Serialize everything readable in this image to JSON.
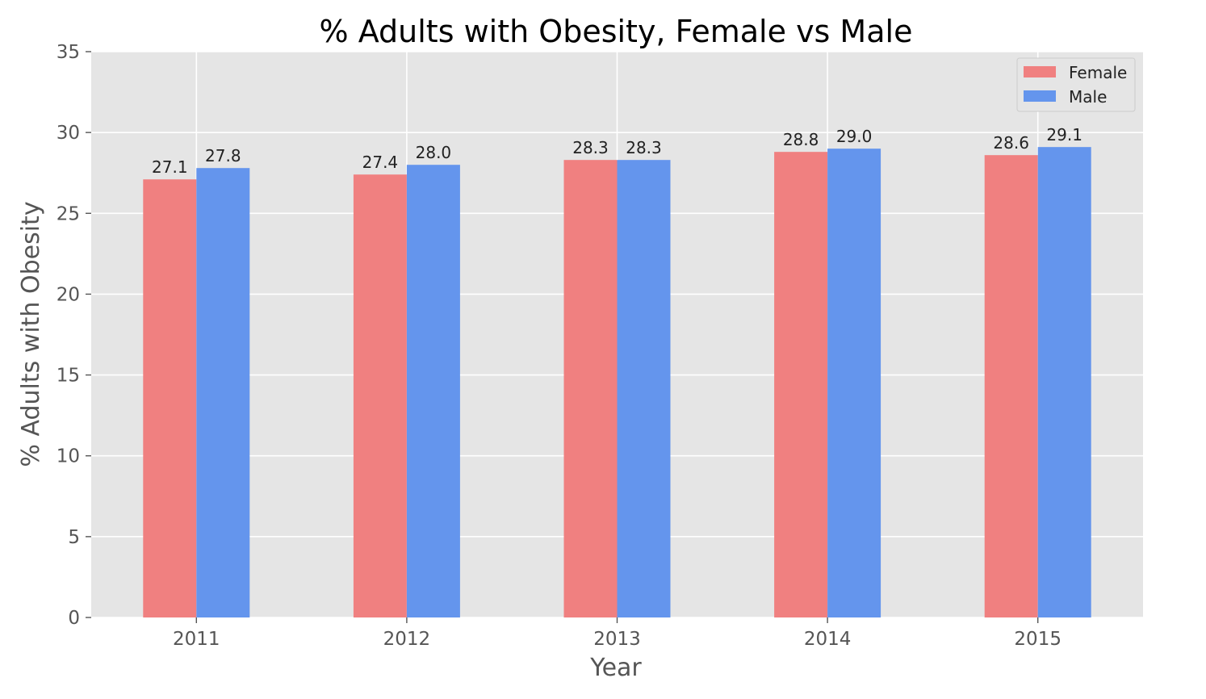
{
  "chart_data": {
    "type": "bar",
    "title": "% Adults with Obesity, Female vs Male",
    "xlabel": "Year",
    "ylabel": "% Adults with Obesity",
    "categories": [
      "2011",
      "2012",
      "2013",
      "2014",
      "2015"
    ],
    "series": [
      {
        "name": "Female",
        "color": "#f08080",
        "values": [
          27.1,
          27.4,
          28.3,
          28.8,
          28.6
        ]
      },
      {
        "name": "Male",
        "color": "#6495ed",
        "values": [
          27.8,
          28.0,
          28.3,
          29.0,
          29.1
        ]
      }
    ],
    "data_labels": [
      [
        "27.1",
        "27.4",
        "28.3",
        "28.8",
        "28.6"
      ],
      [
        "27.8",
        "28.0",
        "28.3",
        "29.0",
        "29.1"
      ]
    ],
    "ylim": [
      0,
      35
    ],
    "yticks": [
      0,
      5,
      10,
      15,
      20,
      25,
      30,
      35
    ],
    "ytick_labels": [
      "0",
      "5",
      "10",
      "15",
      "20",
      "25",
      "30",
      "35"
    ],
    "grid": true,
    "legend_position": "top-right",
    "background_color": "#e5e5e5",
    "grid_color": "#ffffff"
  }
}
